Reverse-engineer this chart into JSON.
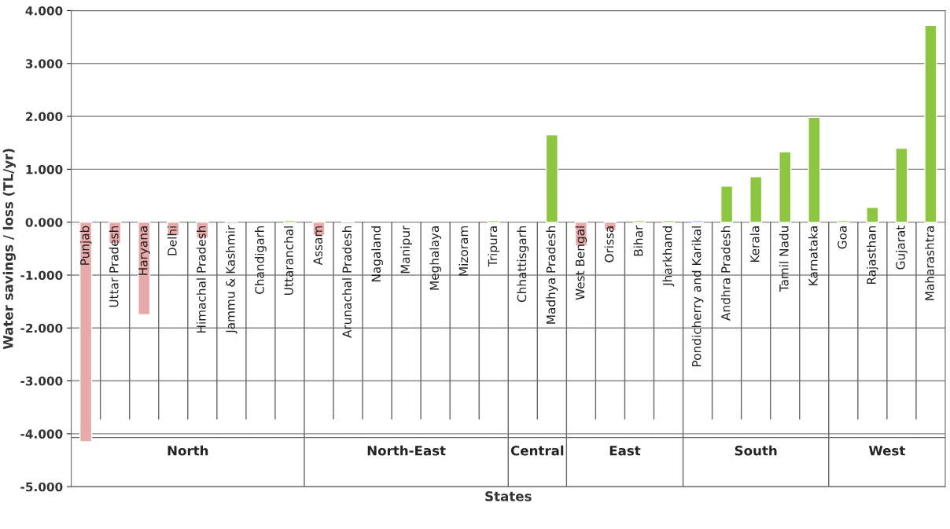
{
  "chart_data": {
    "type": "bar",
    "xlabel": "States",
    "ylabel": "Water savings / loss (TL/yr)",
    "categories": [
      "Punjab",
      "Uttar Pradesh",
      "Haryana",
      "Delhi",
      "Himachal Pradesh",
      "Jammu & Kashmir",
      "Chandigarh",
      "Uttaranchal",
      "Assam",
      "Arunachal Pradesh",
      "Nagaland",
      "Manipur",
      "Meghalaya",
      "Mizoram",
      "Tripura",
      "Chhattisgarh",
      "Madhya Pradesh",
      "West Bengal",
      "Orissa",
      "Bihar",
      "Jharkhand",
      "Pondicherry and Karikal",
      "Andhra Pradesh",
      "Kerala",
      "Tamil Nadu",
      "Karnataka",
      "Goa",
      "Rajasthan",
      "Gujarat",
      "Maharashtra"
    ],
    "values": [
      -4.15,
      -0.4,
      -1.75,
      -0.25,
      -0.3,
      -0.03,
      null,
      0.03,
      -0.25,
      -0.03,
      null,
      null,
      null,
      null,
      0.03,
      null,
      1.65,
      -0.45,
      -0.15,
      0.03,
      0.03,
      0.03,
      0.68,
      0.86,
      1.33,
      1.98,
      0.03,
      0.28,
      1.4,
      3.72
    ],
    "colors": [
      "#e8a9a9",
      "#e8a9a9",
      "#e8a9a9",
      "#e8a9a9",
      "#e8a9a9",
      "#e8a9a9",
      "#8cc63e",
      "#8cc63e",
      "#e8a9a9",
      "#e8a9a9",
      "#8cc63e",
      "#8cc63e",
      "#8cc63e",
      "#8cc63e",
      "#8cc63e",
      "#8cc63e",
      "#8cc63e",
      "#e8a9a9",
      "#e8a9a9",
      "#8cc63e",
      "#8cc63e",
      "#8cc63e",
      "#8cc63e",
      "#8cc63e",
      "#8cc63e",
      "#8cc63e",
      "#8cc63e",
      "#8cc63e",
      "#8cc63e",
      "#8cc63e"
    ],
    "annotations": [
      "North",
      "North-East",
      "Central",
      "East",
      "South",
      "West"
    ],
    "ylim": [
      -5,
      4
    ],
    "yticks": [
      {
        "value": 4,
        "label": "4.000"
      },
      {
        "value": 3,
        "label": "3.000"
      },
      {
        "value": 2,
        "label": "2.000"
      },
      {
        "value": 1,
        "label": "1.000"
      },
      {
        "value": 0,
        "label": "0.000"
      },
      {
        "value": -1,
        "label": "-1.000"
      },
      {
        "value": -2,
        "label": "-2.000"
      },
      {
        "value": -3,
        "label": "-3.000"
      },
      {
        "value": -4,
        "label": "-4.000"
      },
      {
        "value": -5,
        "label": "-5.000"
      }
    ],
    "grid": "y",
    "legend": false
  }
}
